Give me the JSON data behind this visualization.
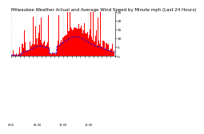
{
  "title": "Milwaukee Weather Actual and Average Wind Speed by Minute mph (Last 24 Hours)",
  "bg_color": "#ffffff",
  "bar_color": "#ff0000",
  "line_color": "#0000ff",
  "grid_color": "#888888",
  "n_points": 1440,
  "y_max": 25,
  "y_ticks": [
    0,
    5,
    10,
    15,
    20,
    25
  ],
  "y_tick_labels": [
    "0",
    "5",
    "10",
    "15",
    "20",
    "25"
  ],
  "title_fontsize": 4.0,
  "tick_fontsize": 3.2
}
